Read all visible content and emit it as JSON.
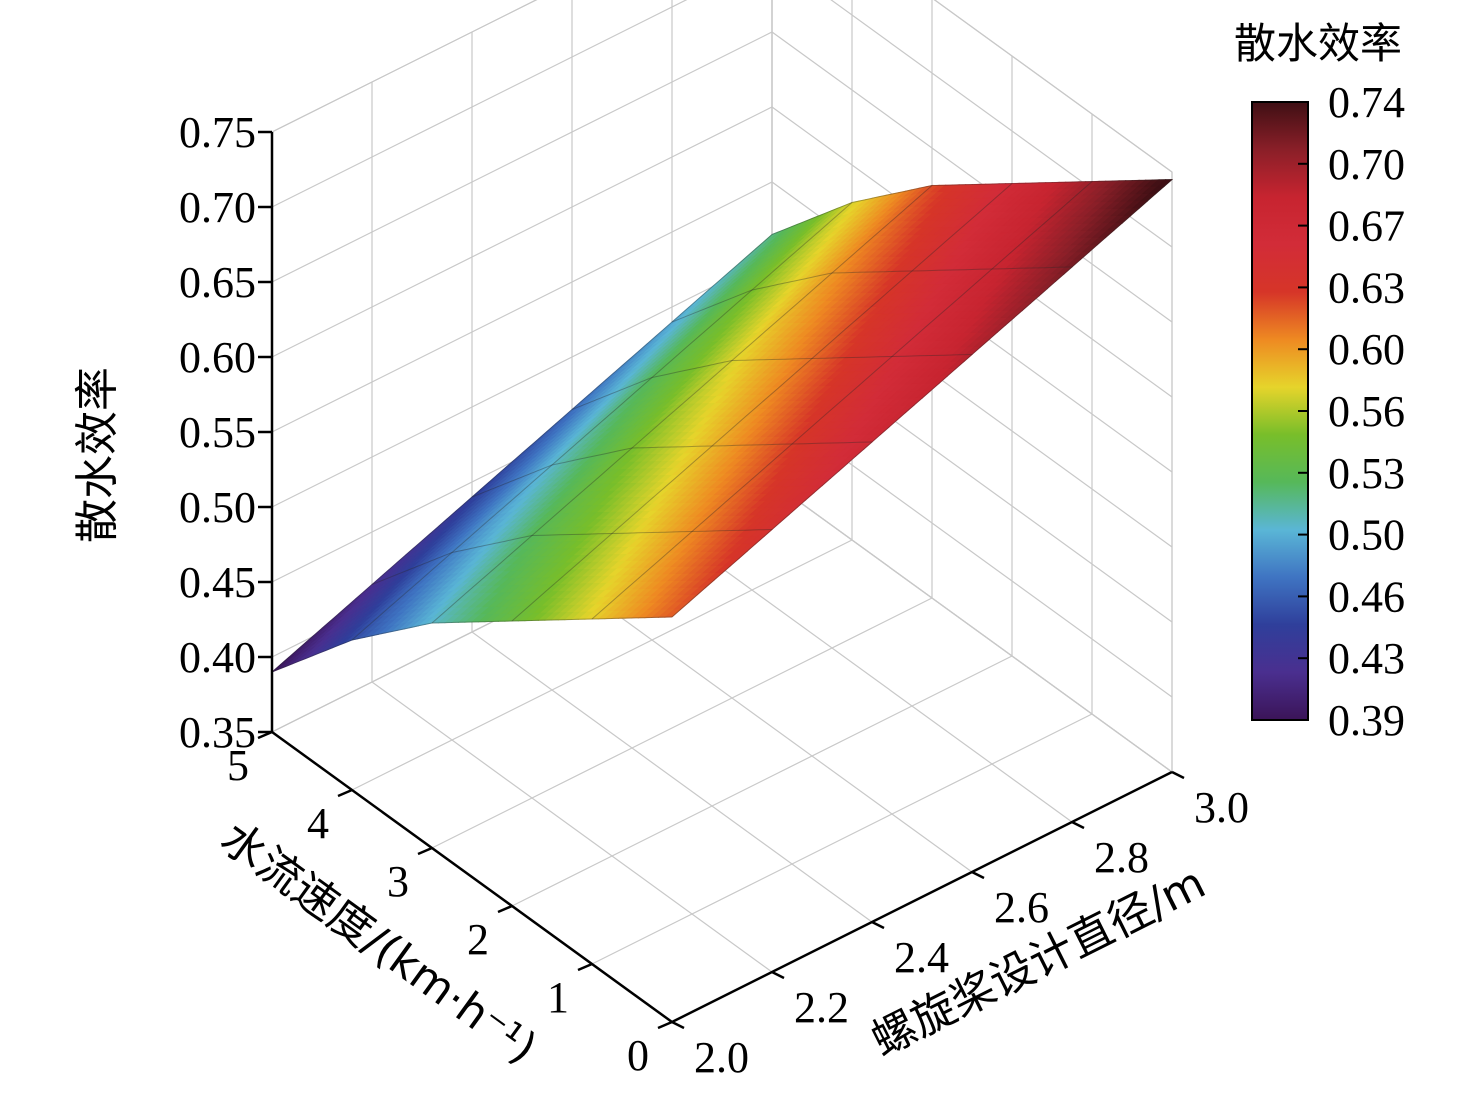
{
  "chart_data": {
    "type": "surface3d",
    "zlabel": "散水效率",
    "xlabel": "水流速度/(km·h⁻¹)",
    "ylabel": "螺旋桨设计直径/m",
    "colorbar_title": "散水效率",
    "x_ticks": [
      "0",
      "1",
      "2",
      "3",
      "4",
      "5"
    ],
    "y_ticks": [
      "2.0",
      "2.2",
      "2.4",
      "2.6",
      "2.8",
      "3.0"
    ],
    "z_ticks": [
      "0.35",
      "0.40",
      "0.45",
      "0.50",
      "0.55",
      "0.60",
      "0.65",
      "0.70",
      "0.75"
    ],
    "colorbar_ticks": [
      "0.74",
      "0.70",
      "0.67",
      "0.63",
      "0.60",
      "0.56",
      "0.53",
      "0.50",
      "0.46",
      "0.43",
      "0.39"
    ],
    "xlim": [
      0,
      5
    ],
    "ylim": [
      2.0,
      3.0
    ],
    "zlim": [
      0.35,
      0.75
    ],
    "colorbar_range": [
      0.39,
      0.74
    ],
    "x": [
      0,
      1,
      2,
      3,
      4,
      5
    ],
    "y": [
      2.0,
      2.2,
      2.4,
      2.6,
      2.8,
      3.0
    ],
    "z": [
      [
        0.62,
        0.645,
        0.67,
        0.695,
        0.72,
        0.745
      ],
      [
        0.58,
        0.605,
        0.63,
        0.655,
        0.68,
        0.705
      ],
      [
        0.54,
        0.565,
        0.59,
        0.615,
        0.64,
        0.665
      ],
      [
        0.5,
        0.525,
        0.55,
        0.575,
        0.6,
        0.625
      ],
      [
        0.45,
        0.475,
        0.5,
        0.525,
        0.55,
        0.575
      ],
      [
        0.39,
        0.415,
        0.44,
        0.465,
        0.49,
        0.515
      ]
    ],
    "colormap": [
      "#3b1458",
      "#4a2f8f",
      "#2f3f9b",
      "#3f74c2",
      "#5ab6d6",
      "#56b85a",
      "#78be2a",
      "#e6d42b",
      "#ee8a22",
      "#d63528",
      "#d22c38",
      "#c72430",
      "#8a1f28",
      "#3f0f14"
    ],
    "grid": true
  }
}
